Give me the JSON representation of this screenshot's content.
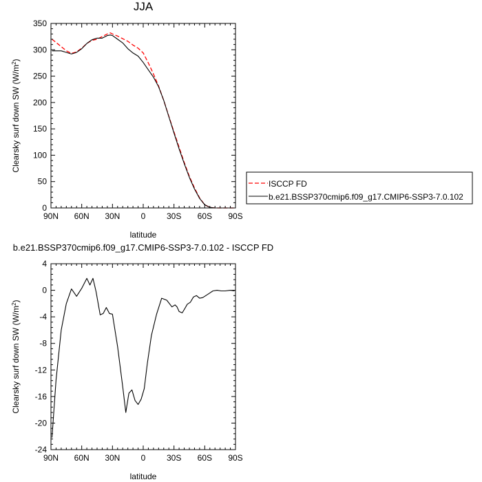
{
  "chart_data": [
    {
      "type": "line",
      "title": "JJA",
      "xlabel": "latitude",
      "ylabel": "Clearsky surf down SW (W/m",
      "ylabel_sup": "2",
      "ylabel_tail": ")",
      "x_reversed": true,
      "xlim": [
        -90,
        90
      ],
      "ylim": [
        0,
        350
      ],
      "x_ticks": [
        90,
        60,
        30,
        0,
        -30,
        -60,
        -90
      ],
      "x_tick_labels": [
        "90N",
        "60N",
        "30N",
        "0",
        "30S",
        "60S",
        "90S"
      ],
      "y_ticks": [
        0,
        50,
        100,
        150,
        200,
        250,
        300,
        350
      ],
      "y_tick_labels": [
        "0",
        "50",
        "100",
        "150",
        "200",
        "250",
        "300",
        "350"
      ],
      "legend_position": "right",
      "series": [
        {
          "name": "ISCCP FD",
          "color": "#ff0000",
          "dash": "dashed",
          "x": [
            89,
            85,
            80,
            75,
            70,
            65,
            60,
            55,
            50,
            45,
            40,
            35,
            32,
            30,
            25,
            20,
            15,
            10,
            5,
            0,
            -5,
            -10,
            -15,
            -20,
            -25,
            -30,
            -35,
            -40,
            -45,
            -50,
            -55,
            -60,
            -65,
            -70,
            -75,
            -80,
            -85,
            -89
          ],
          "values": [
            320,
            314,
            306,
            298,
            293,
            296,
            303,
            312,
            318,
            320,
            325,
            330,
            332,
            330,
            326,
            321,
            316,
            309,
            303,
            294,
            275,
            254,
            231,
            204,
            174,
            144,
            115,
            86,
            60,
            38,
            19,
            6,
            1,
            0,
            0,
            0,
            0,
            0
          ]
        },
        {
          "name": "b.e21.BSSP370cmip6.f09_g17.CMIP6-SSP3-7.0.102",
          "color": "#000000",
          "dash": "solid",
          "x": [
            89,
            85,
            80,
            75,
            70,
            65,
            60,
            55,
            50,
            45,
            40,
            35,
            32,
            30,
            25,
            20,
            15,
            10,
            5,
            0,
            -5,
            -10,
            -15,
            -20,
            -25,
            -30,
            -35,
            -40,
            -45,
            -50,
            -55,
            -60,
            -65,
            -70,
            -75,
            -80,
            -85,
            -89
          ],
          "values": [
            298,
            298,
            298,
            295,
            292,
            295,
            302,
            312,
            319,
            322,
            322,
            327,
            328,
            327,
            320,
            313,
            302,
            294,
            288,
            276,
            262,
            248,
            230,
            204,
            173,
            142,
            112,
            84,
            58,
            36,
            18,
            6,
            1,
            0,
            0,
            0,
            0,
            0
          ]
        }
      ]
    },
    {
      "type": "line",
      "title": "b.e21.BSSP370cmip6.f09_g17.CMIP6-SSP3-7.0.102 - ISCCP FD",
      "xlabel": "latitude",
      "ylabel": "Clearsky surf down SW (W/m",
      "ylabel_sup": "2",
      "ylabel_tail": ")",
      "x_reversed": true,
      "xlim": [
        -90,
        90
      ],
      "ylim": [
        -24,
        4
      ],
      "x_ticks": [
        90,
        60,
        30,
        0,
        -30,
        -60,
        -90
      ],
      "x_tick_labels": [
        "90N",
        "60N",
        "30N",
        "0",
        "30S",
        "60S",
        "90S"
      ],
      "y_ticks": [
        -24,
        -20,
        -16,
        -12,
        -8,
        -4,
        0,
        4
      ],
      "y_tick_labels": [
        "-24",
        "-20",
        "-16",
        "-12",
        "-8",
        "-4",
        "0",
        "4"
      ],
      "series": [
        {
          "color": "#000000",
          "dash": "solid",
          "x": [
            89,
            85,
            80,
            75,
            70,
            65,
            60,
            55,
            52,
            49,
            46,
            42,
            39,
            36,
            33,
            30,
            25,
            20,
            17,
            14,
            11,
            8,
            5,
            2,
            -1,
            -4,
            -8,
            -13,
            -18,
            -23,
            -28,
            -31,
            -33,
            -35,
            -38,
            -40,
            -43,
            -46,
            -49,
            -52,
            -55,
            -58,
            -60,
            -64,
            -68,
            -72,
            -76,
            -80,
            -85,
            -89
          ],
          "values": [
            -22.2,
            -13.5,
            -6,
            -2,
            0.2,
            -0.9,
            0.3,
            1.8,
            0.8,
            1.8,
            -0.2,
            -3.7,
            -3.5,
            -2.6,
            -3.5,
            -3.6,
            -8.5,
            -14.5,
            -18.4,
            -15.5,
            -15,
            -16.6,
            -17.2,
            -16.4,
            -14.8,
            -11,
            -6.8,
            -3.6,
            -1.2,
            -1.5,
            -2.5,
            -2.2,
            -2.5,
            -3.2,
            -3.4,
            -2.9,
            -2.1,
            -1.8,
            -1,
            -0.8,
            -1.2,
            -1.1,
            -0.9,
            -0.5,
            -0.1,
            0,
            -0.1,
            -0.1,
            0,
            -0.1
          ]
        }
      ]
    }
  ]
}
